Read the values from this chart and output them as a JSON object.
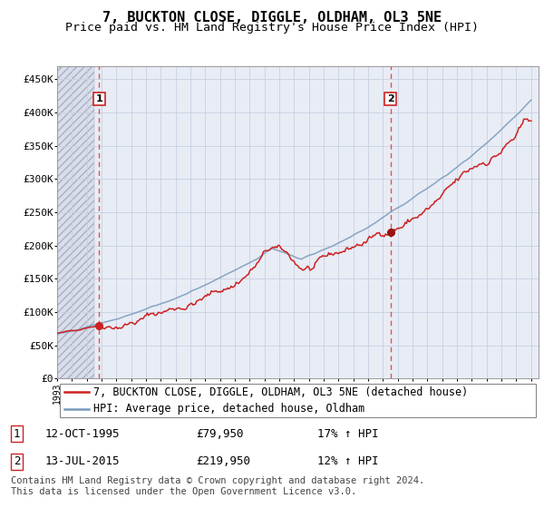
{
  "title": "7, BUCKTON CLOSE, DIGGLE, OLDHAM, OL3 5NE",
  "subtitle": "Price paid vs. HM Land Registry's House Price Index (HPI)",
  "ylim": [
    0,
    470000
  ],
  "yticks": [
    0,
    50000,
    100000,
    150000,
    200000,
    250000,
    300000,
    350000,
    400000,
    450000
  ],
  "ytick_labels": [
    "£0",
    "£50K",
    "£100K",
    "£150K",
    "£200K",
    "£250K",
    "£300K",
    "£350K",
    "£400K",
    "£450K"
  ],
  "sale1_year": 1995.833,
  "sale1_price": 79950,
  "sale2_year": 2015.5,
  "sale2_price": 219950,
  "legend_line1": "7, BUCKTON CLOSE, DIGGLE, OLDHAM, OL3 5NE (detached house)",
  "legend_line2": "HPI: Average price, detached house, Oldham",
  "table_row1": [
    "1",
    "12-OCT-1995",
    "£79,950",
    "17% ↑ HPI"
  ],
  "table_row2": [
    "2",
    "13-JUL-2015",
    "£219,950",
    "12% ↑ HPI"
  ],
  "footer": "Contains HM Land Registry data © Crown copyright and database right 2024.\nThis data is licensed under the Open Government Licence v3.0.",
  "plot_bg": "#e8ecf5",
  "hatch_bg": "#d8deea",
  "grid_color": "#c8d0e0",
  "red_color": "#cc2222",
  "blue_color": "#7799bb",
  "vline_color": "#dd4444",
  "title_fontsize": 11,
  "subtitle_fontsize": 9.5,
  "tick_fontsize": 8,
  "legend_fontsize": 8.5,
  "table_fontsize": 9,
  "footer_fontsize": 7.5
}
